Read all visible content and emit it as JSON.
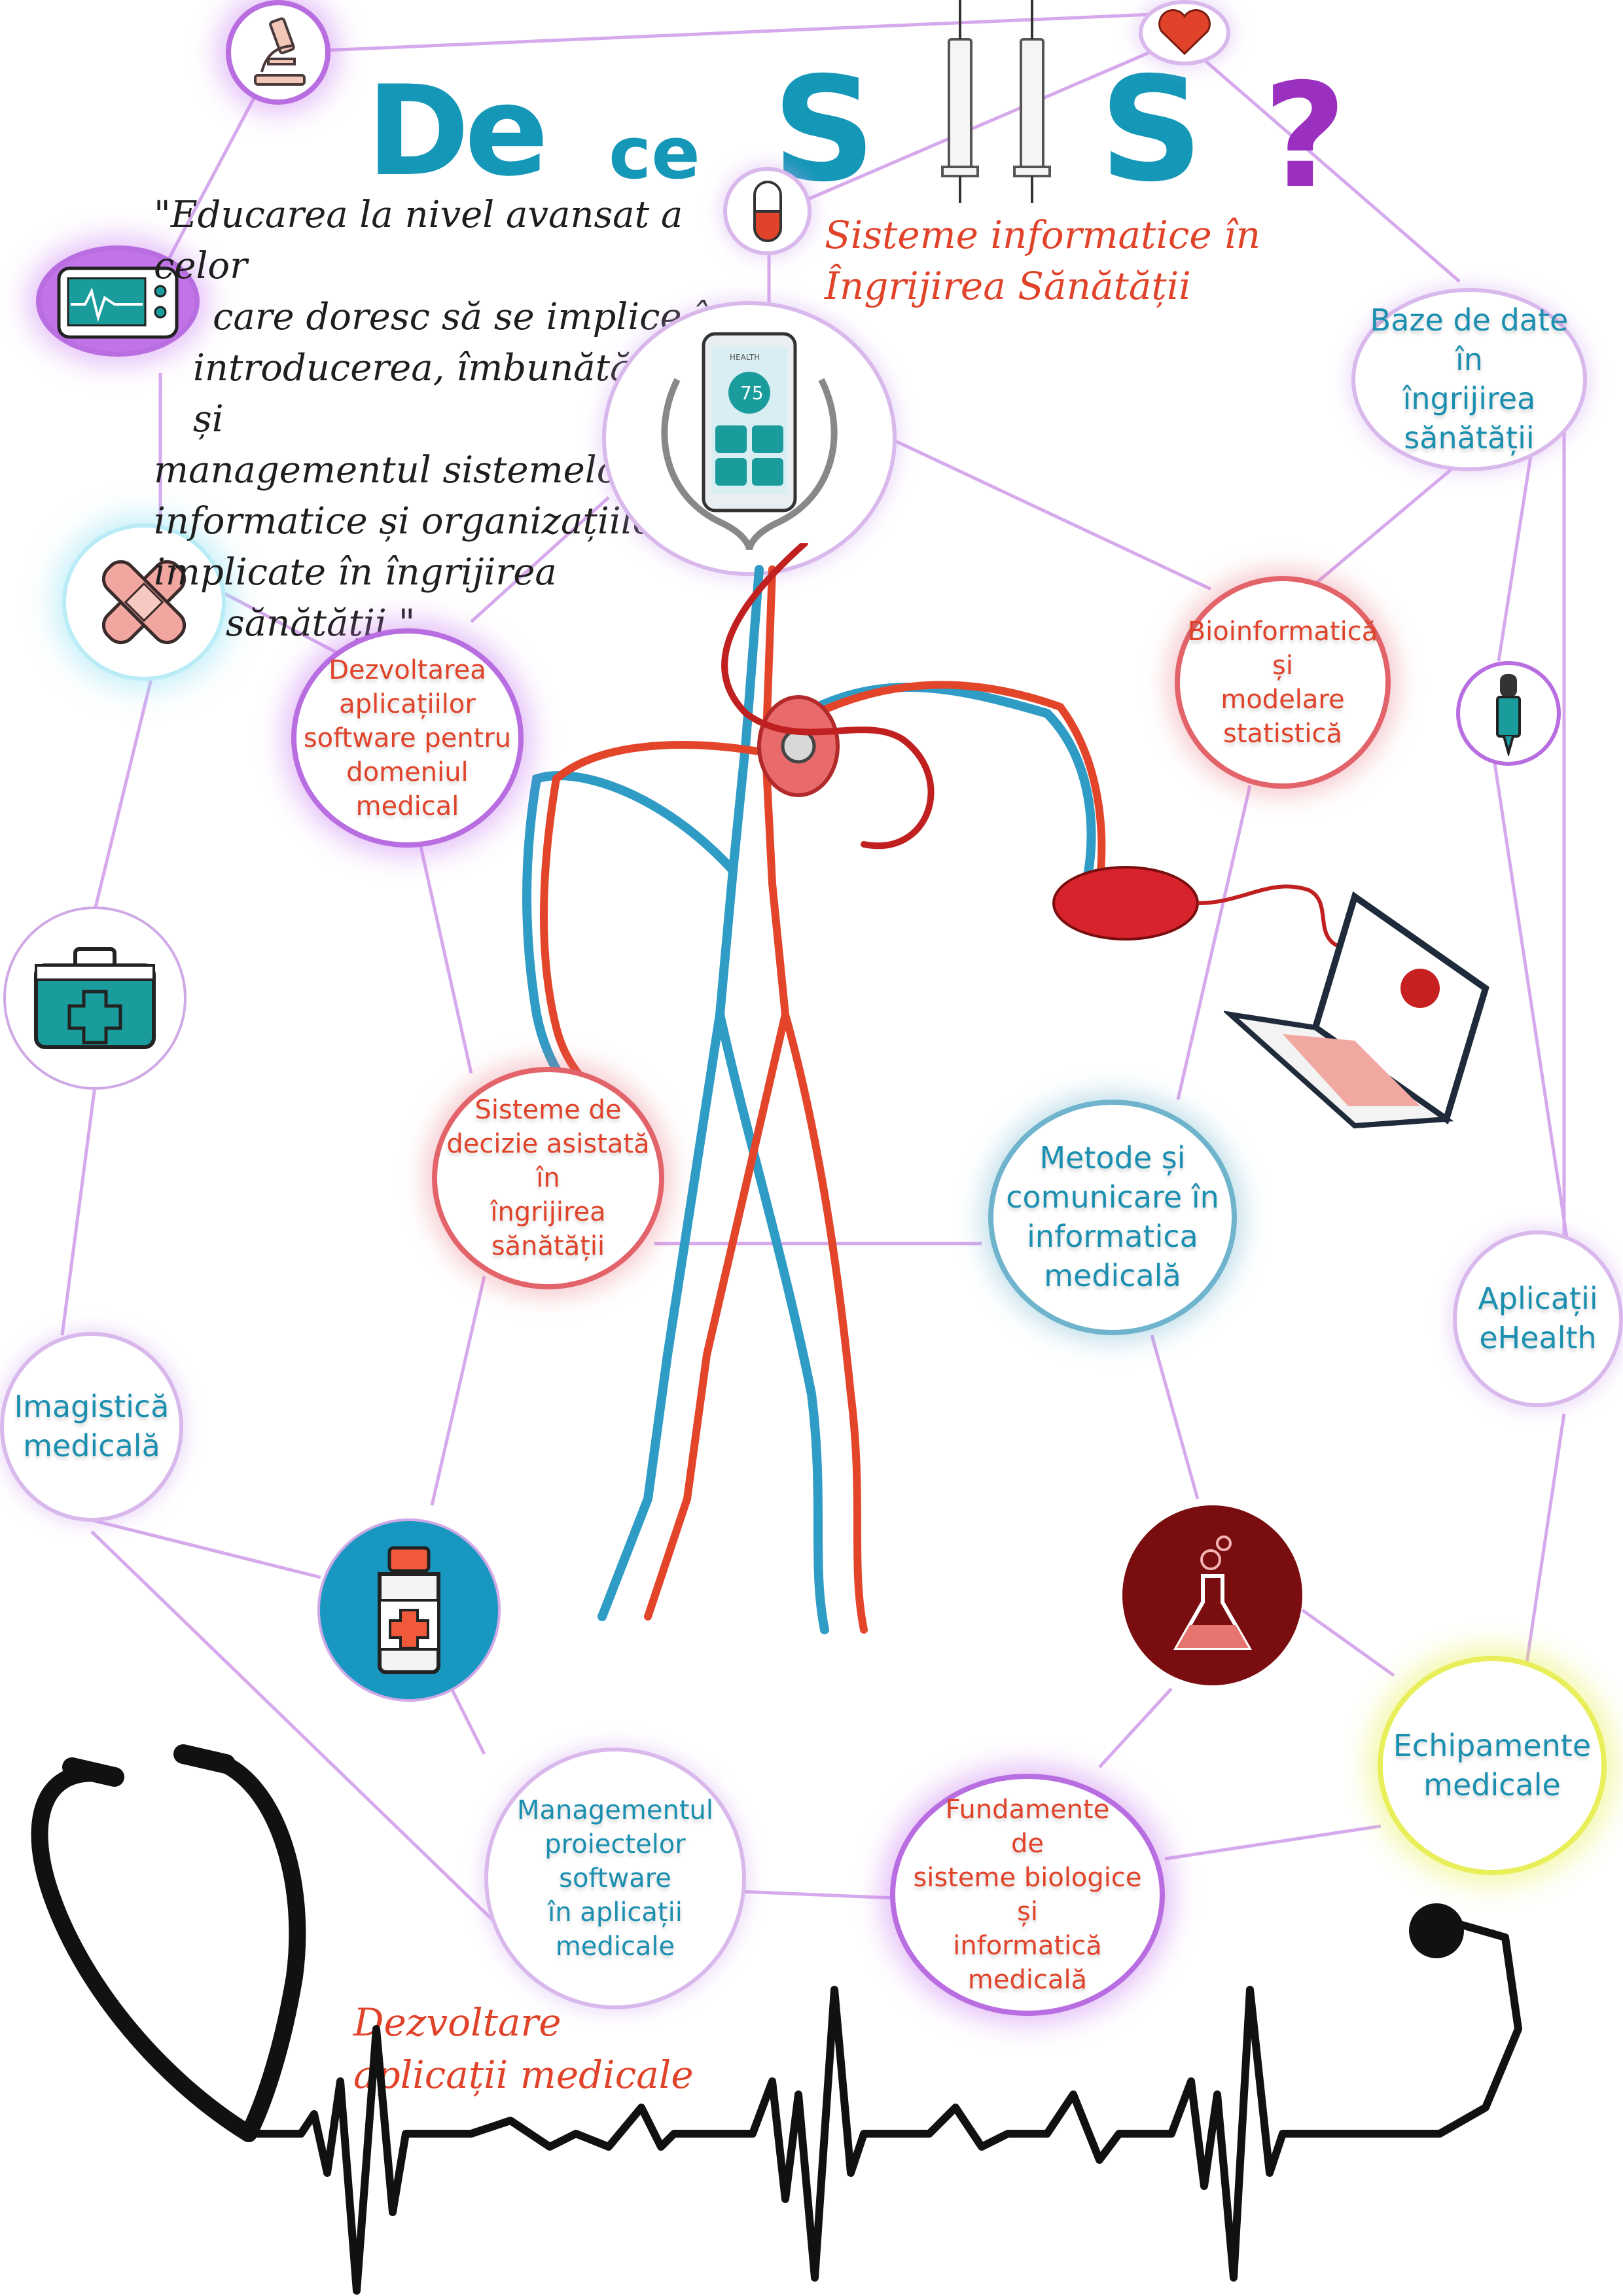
{
  "title": {
    "word1": "De",
    "word2": "ce",
    "letter1": "S",
    "letter2": "S",
    "question_mark": "?"
  },
  "quote": [
    "\"Educarea la nivel avansat a celor",
    "care doresc să se implice în",
    "introducerea, îmbunătățirea și",
    "managementul sistemelor",
    "informatice și organizațiilor",
    "implicate în îngrijirea",
    "sănătății.\""
  ],
  "program_title": [
    "Sisteme informatice în",
    "Îngrijirea Sănătății"
  ],
  "phone_app_label": "HEALTH",
  "phone_reading": "75",
  "footer_caption": [
    "Dezvoltare",
    "aplicații medicale"
  ],
  "nodes": {
    "baze_de_date": "Baze de date\nîn\nîngrijirea\nsănătății",
    "bioinformatica": "Bioinformatică\nși\nmodelare\nstatistică",
    "dezvoltarea_aplicatiilor": "Dezvoltarea\naplicațiilor\nsoftware pentru\ndomeniul\nmedical",
    "sisteme_decizie": "Sisteme de\ndecizie asistată\nîn\nîngrijirea\nsănătății",
    "metode_comunicare": "Metode și\ncomunicare în\ninformatica\nmedicală",
    "aplicatii_ehealth": "Aplicații\neHealth",
    "imagistica": "Imagistică\nmedicală",
    "echipamente": "Echipamente\nmedicale",
    "management_proiecte": "Managementul\nproiectelor software\nîn aplicații\nmedicale",
    "fundamente": "Fundamente\nde\nsisteme biologice\nși\ninformatică\nmedicală"
  },
  "icons": [
    "microscope-icon",
    "heart-icon",
    "syringe-icon",
    "pill-capsule-icon",
    "ecg-monitor-icon",
    "bandage-icon",
    "medical-kit-icon",
    "medicine-bottle-icon",
    "flask-icon",
    "dropper-icon",
    "smartphone-stethoscope-icon",
    "computer-mouse-icon",
    "laptop-icon",
    "circulatory-system-figure",
    "stethoscope-ecg-line"
  ],
  "colors": {
    "title_teal": "#1597b8",
    "question_purple": "#9b2fc0",
    "node_red_text": "#e0432a",
    "node_teal_text": "#1b8fb0",
    "connector_lavender": "#d6a9ec",
    "artery_red": "#e3452b",
    "vein_blue": "#2f9cc6"
  }
}
